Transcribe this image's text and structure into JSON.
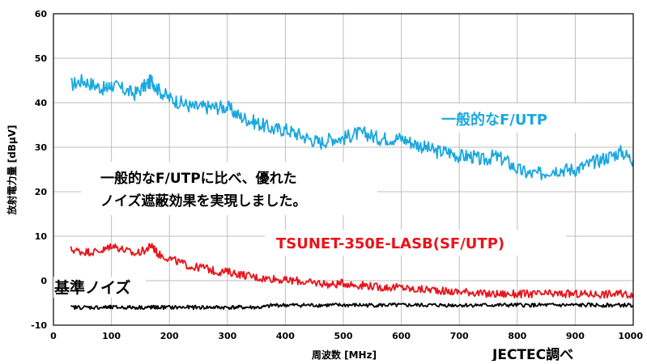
{
  "chart_data": {
    "type": "line",
    "title": "",
    "xlabel": "周波数 [MHz]",
    "ylabel": "放射電力量 [dBμV]",
    "xlim": [
      0,
      1000
    ],
    "ylim": [
      -10,
      60
    ],
    "x_ticks": [
      0,
      100,
      200,
      300,
      400,
      500,
      600,
      700,
      800,
      900,
      1000
    ],
    "y_ticks": [
      -10,
      0,
      10,
      20,
      30,
      40,
      50,
      60
    ],
    "x_tick_labels": [
      "0",
      "100",
      "200",
      "300",
      "400",
      "500",
      "600",
      "700",
      "800",
      "900",
      "1000"
    ],
    "y_tick_labels": [
      "-10",
      "0",
      "10",
      "20",
      "30",
      "40",
      "50",
      "60"
    ],
    "grid": true,
    "source_note": "JECTEC調べ",
    "series": [
      {
        "name": "一般的なF/UTP",
        "color": "#1aa7e0",
        "x": [
          30,
          50,
          70,
          90,
          100,
          120,
          140,
          160,
          170,
          180,
          200,
          220,
          240,
          260,
          280,
          300,
          320,
          340,
          360,
          380,
          400,
          420,
          440,
          460,
          480,
          500,
          520,
          540,
          560,
          580,
          600,
          620,
          640,
          660,
          680,
          700,
          720,
          740,
          760,
          780,
          800,
          820,
          840,
          860,
          880,
          900,
          920,
          940,
          960,
          980,
          1000
        ],
        "y": [
          44,
          45,
          44,
          43,
          44,
          43,
          42,
          44,
          45,
          43,
          41,
          40,
          39,
          39,
          39,
          39,
          37,
          36,
          35,
          34,
          34,
          33,
          32,
          31,
          32,
          32,
          33,
          33,
          32,
          32,
          32,
          31,
          30,
          29,
          29,
          28,
          28,
          27,
          28,
          27,
          25,
          24,
          24,
          25,
          25,
          25,
          26,
          27,
          28,
          29,
          27
        ]
      },
      {
        "name": "TSUNET-350E-LASB(SF/UTP)",
        "color": "#e8141b",
        "x": [
          30,
          50,
          70,
          90,
          100,
          120,
          140,
          160,
          170,
          180,
          200,
          220,
          240,
          260,
          280,
          300,
          320,
          340,
          360,
          380,
          400,
          420,
          440,
          460,
          480,
          500,
          520,
          540,
          560,
          580,
          600,
          620,
          640,
          660,
          680,
          700,
          720,
          740,
          760,
          780,
          800,
          820,
          840,
          860,
          880,
          900,
          920,
          940,
          960,
          980,
          1000
        ],
        "y": [
          7,
          6.5,
          6.5,
          7,
          8,
          7,
          6,
          7,
          8,
          6,
          5,
          4,
          3,
          3,
          2,
          2,
          1.5,
          1,
          0.5,
          0.5,
          0,
          0,
          -0.5,
          -0.5,
          -1,
          -0.5,
          -1,
          -1,
          -1.5,
          -1.5,
          -1.5,
          -2,
          -2,
          -2,
          -2.5,
          -2.5,
          -2.5,
          -3,
          -3,
          -3,
          -3,
          -3,
          -3,
          -3,
          -3,
          -3,
          -3,
          -3,
          -3,
          -3,
          -3
        ]
      },
      {
        "name": "基準ノイズ",
        "color": "#000000",
        "x": [
          30,
          50,
          70,
          90,
          100,
          120,
          140,
          160,
          170,
          180,
          200,
          220,
          240,
          260,
          280,
          300,
          320,
          340,
          360,
          380,
          400,
          420,
          440,
          460,
          480,
          500,
          520,
          540,
          560,
          580,
          600,
          620,
          640,
          660,
          680,
          700,
          720,
          740,
          760,
          780,
          800,
          820,
          840,
          860,
          880,
          900,
          920,
          940,
          960,
          980,
          1000
        ],
        "y": [
          -6,
          -6,
          -6,
          -6,
          -6,
          -6,
          -6,
          -6,
          -6,
          -6,
          -6,
          -6,
          -6,
          -6,
          -6,
          -6,
          -6,
          -6,
          -6,
          -5.5,
          -5.5,
          -5.5,
          -5.5,
          -5.5,
          -5.5,
          -5.5,
          -5.5,
          -5.5,
          -5.5,
          -5.5,
          -5.5,
          -5.5,
          -5.5,
          -5.5,
          -5.5,
          -5.5,
          -5.5,
          -5.5,
          -5.5,
          -5.5,
          -5.5,
          -5.5,
          -5.5,
          -5.5,
          -5.5,
          -5.5,
          -5.5,
          -5.5,
          -5.5,
          -5.5,
          -5.5
        ]
      }
    ],
    "annotations": {
      "futp_label": "一般的なF/UTP",
      "tsunet_label": "TSUNET-350E-LASB(SF/UTP)",
      "noise_label": "基準ノイズ",
      "message_line1": "一般的なF/UTPに比べ、優れた",
      "message_line2": "ノイズ遮蔽効果を実現しました。"
    }
  }
}
